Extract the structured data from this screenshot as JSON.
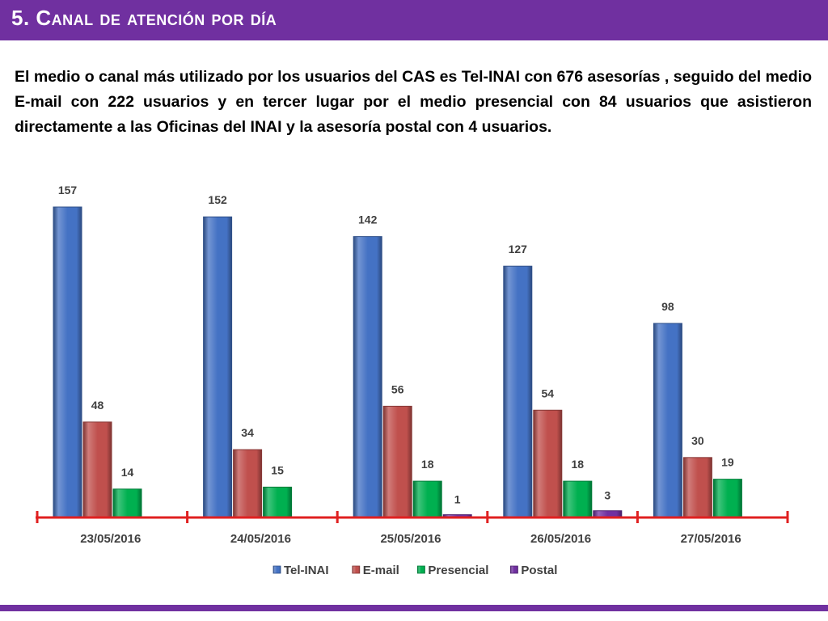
{
  "header": {
    "title": "5. Canal de atención por día"
  },
  "description": "El medio o canal más utilizado por los usuarios del CAS es Tel-INAI con 676 asesorías , seguido del medio E-mail con 222 usuarios y en tercer lugar por el medio presencial con 84 usuarios que  asistieron directamente a las Oficinas del INAI y la asesoría postal con 4 usuarios.",
  "colors": {
    "accent": "#7030a0",
    "axis": "#e02020"
  },
  "chart_data": {
    "type": "bar",
    "categories": [
      "23/05/2016",
      "24/05/2016",
      "25/05/2016",
      "26/05/2016",
      "27/05/2016"
    ],
    "series": [
      {
        "name": "Tel-INAI",
        "color": "#4472c4",
        "values": [
          157,
          152,
          142,
          127,
          98
        ]
      },
      {
        "name": "E-mail",
        "color": "#c0504d",
        "values": [
          48,
          34,
          56,
          54,
          30
        ]
      },
      {
        "name": "Presencial",
        "color": "#00b050",
        "values": [
          14,
          15,
          18,
          18,
          19
        ]
      },
      {
        "name": "Postal",
        "color": "#7030a0",
        "values": [
          null,
          null,
          1,
          3,
          null
        ]
      }
    ],
    "ylim": [
      0,
      170
    ],
    "grid": false,
    "legend": "bottom"
  }
}
